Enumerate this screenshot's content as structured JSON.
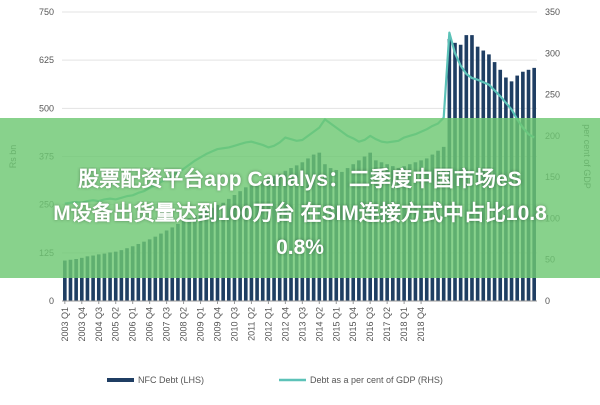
{
  "banner": {
    "line1": "股票配资平台app Canalys：二季度中国市场eS",
    "line2": "M设备出货量达到100万台 在SIM连接方式中占比10.8",
    "line3": "0.8%"
  },
  "chart_data": {
    "type": "bar",
    "title": "",
    "xlabel": "",
    "ylabel_left": "Rs bn",
    "ylabel_right": "per cent of GDP",
    "ylim_left": [
      0,
      750
    ],
    "ylim_right": [
      0,
      350
    ],
    "yticks_left": [
      "0",
      "125",
      "250",
      "375",
      "500",
      "625",
      "750"
    ],
    "yticks_right": [
      "0",
      "50",
      "100",
      "150",
      "200",
      "250",
      "300",
      "350"
    ],
    "xtick_labels": [
      "2003 Q1",
      "2003 Q4",
      "2004 Q3",
      "2005 Q2",
      "2006 Q1",
      "2006 Q4",
      "2007 Q3",
      "2008 Q2",
      "2009 Q1",
      "2009 Q4",
      "2010 Q3",
      "2011 Q2",
      "2012 Q1",
      "2012 Q4",
      "2013 Q3",
      "2014 Q2",
      "2015 Q1",
      "2015 Q4",
      "2016 Q3",
      "2017 Q2",
      "2018 Q1",
      "2018 Q4"
    ],
    "grid": true,
    "legend_position": "bottom",
    "series": [
      {
        "name": "NFC Debt (LHS)",
        "kind": "bar",
        "axis": "left",
        "color": "#1f3e63",
        "values": [
          105,
          107,
          109,
          112,
          116,
          118,
          121,
          123,
          126,
          128,
          132,
          137,
          142,
          148,
          154,
          160,
          167,
          175,
          183,
          191,
          200,
          208,
          215,
          222,
          229,
          236,
          242,
          249,
          255,
          265,
          275,
          285,
          295,
          300,
          305,
          310,
          318,
          325,
          330,
          338,
          345,
          352,
          360,
          370,
          380,
          385,
          355,
          345,
          340,
          335,
          345,
          355,
          365,
          375,
          385,
          365,
          360,
          355,
          350,
          345,
          350,
          355,
          360,
          365,
          370,
          380,
          390,
          400,
          680,
          670,
          665,
          690,
          690,
          660,
          650,
          640,
          620,
          600,
          580,
          570,
          585,
          595,
          600,
          605
        ]
      },
      {
        "name": "Debt as a per cent of GDP (RHS)",
        "kind": "line",
        "axis": "right",
        "color": "#5cc2b8",
        "values": [
          118,
          119,
          120,
          119,
          121,
          122,
          121,
          123,
          124,
          123,
          125,
          127,
          128,
          131,
          133,
          137,
          140,
          144,
          148,
          152,
          156,
          160,
          165,
          170,
          174,
          178,
          181,
          184,
          185,
          186,
          188,
          190,
          192,
          193,
          191,
          189,
          186,
          188,
          192,
          198,
          196,
          194,
          195,
          200,
          205,
          210,
          220,
          215,
          210,
          205,
          200,
          197,
          193,
          195,
          200,
          196,
          193,
          192,
          193,
          194,
          198,
          200,
          202,
          205,
          208,
          212,
          215,
          222,
          325,
          300,
          285,
          275,
          270,
          268,
          265,
          262,
          255,
          248,
          240,
          232,
          220,
          210,
          202,
          198
        ]
      }
    ]
  }
}
